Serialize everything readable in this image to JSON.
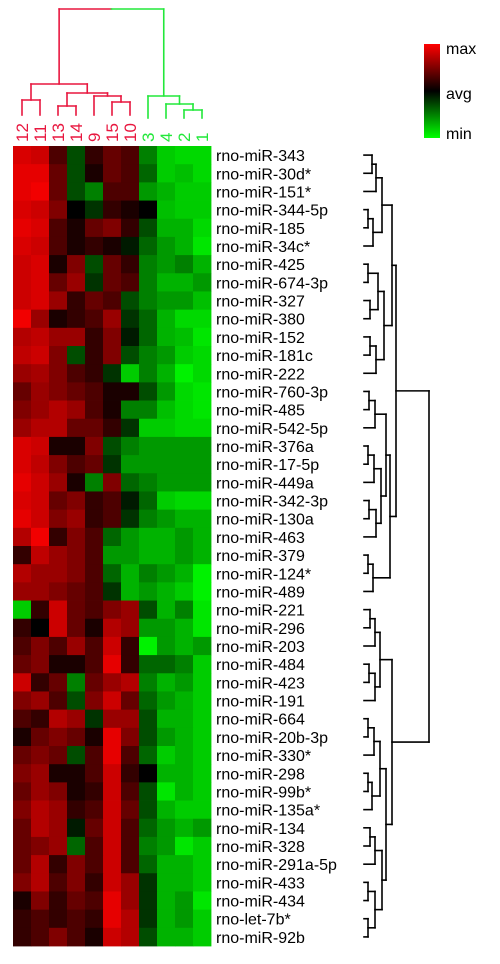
{
  "chart_data": {
    "type": "heatmap",
    "title": "",
    "xlabel": "",
    "ylabel": "",
    "columns": [
      "12",
      "11",
      "13",
      "14",
      "9",
      "15",
      "10",
      "3",
      "4",
      "2",
      "1"
    ],
    "column_groups": [
      {
        "members": [
          "12",
          "11",
          "13",
          "14",
          "9",
          "15",
          "10"
        ],
        "color": "#e8173f"
      },
      {
        "members": [
          "3",
          "4",
          "2",
          "1"
        ],
        "color": "#22e83a"
      }
    ],
    "rows": [
      "rno-miR-343",
      "rno-miR-30d*",
      "rno-miR-151*",
      "rno-miR-344-5p",
      "rno-miR-185",
      "rno-miR-34c*",
      "rno-miR-425",
      "rno-miR-674-3p",
      "rno-miR-327",
      "rno-miR-380",
      "rno-miR-152",
      "rno-miR-181c",
      "rno-miR-222",
      "rno-miR-760-3p",
      "rno-miR-485",
      "rno-miR-542-5p",
      "rno-miR-376a",
      "rno-miR-17-5p",
      "rno-miR-449a",
      "rno-miR-342-3p",
      "rno-miR-130a",
      "rno-miR-463",
      "rno-miR-379",
      "rno-miR-124*",
      "rno-miR-489",
      "rno-miR-221",
      "rno-miR-296",
      "rno-miR-203",
      "rno-miR-484",
      "rno-miR-423",
      "rno-miR-191",
      "rno-miR-664",
      "rno-miR-20b-3p",
      "rno-miR-330*",
      "rno-miR-298",
      "rno-miR-99b*",
      "rno-miR-135a*",
      "rno-miR-134",
      "rno-miR-328",
      "rno-miR-291a-5p",
      "rno-miR-433",
      "rno-miR-434",
      "rno-let-7b*",
      "rno-miR-92b"
    ],
    "value_range": [
      -1,
      1
    ],
    "values": [
      [
        0.85,
        0.8,
        0.3,
        -0.3,
        0.2,
        0.4,
        0.3,
        -0.5,
        -0.8,
        -0.85,
        -0.85
      ],
      [
        0.9,
        0.9,
        0.4,
        -0.3,
        0.1,
        0.4,
        0.3,
        -0.4,
        -0.8,
        -0.75,
        -0.85
      ],
      [
        0.9,
        0.95,
        0.4,
        -0.3,
        -0.5,
        0.3,
        0.3,
        -0.6,
        -0.7,
        -0.8,
        -0.8
      ],
      [
        0.85,
        0.8,
        0.5,
        0.0,
        -0.2,
        0.2,
        0.1,
        0.0,
        -0.75,
        -0.8,
        -0.8
      ],
      [
        0.9,
        0.85,
        0.3,
        0.1,
        0.4,
        0.5,
        0.2,
        -0.3,
        -0.7,
        -0.7,
        -0.85
      ],
      [
        0.85,
        0.8,
        0.3,
        0.1,
        0.2,
        0.1,
        -0.1,
        -0.4,
        -0.6,
        -0.7,
        -0.9
      ],
      [
        0.8,
        0.85,
        0.1,
        0.5,
        -0.3,
        0.4,
        0.2,
        -0.5,
        -0.6,
        -0.5,
        -0.7
      ],
      [
        0.8,
        0.85,
        0.4,
        0.6,
        -0.2,
        0.4,
        0.3,
        -0.5,
        -0.7,
        -0.7,
        -0.6
      ],
      [
        0.8,
        0.85,
        0.6,
        0.2,
        0.4,
        0.3,
        -0.3,
        -0.5,
        -0.6,
        -0.6,
        -0.75
      ],
      [
        0.95,
        0.6,
        0.1,
        0.2,
        0.3,
        0.6,
        -0.2,
        -0.4,
        -0.7,
        -0.85,
        -0.85
      ],
      [
        0.7,
        0.75,
        0.6,
        0.6,
        0.2,
        0.5,
        -0.1,
        -0.4,
        -0.7,
        -0.75,
        -0.9
      ],
      [
        0.75,
        0.8,
        0.5,
        -0.3,
        0.2,
        0.5,
        -0.3,
        -0.5,
        -0.6,
        -0.8,
        -0.85
      ],
      [
        0.6,
        0.65,
        0.5,
        0.3,
        0.2,
        -0.2,
        -0.8,
        -0.5,
        -0.7,
        -0.95,
        -0.85
      ],
      [
        0.4,
        0.6,
        0.5,
        0.4,
        0.3,
        0.1,
        0.1,
        -0.3,
        -0.6,
        -0.85,
        -0.9
      ],
      [
        0.5,
        0.6,
        0.7,
        0.6,
        0.3,
        0.1,
        -0.5,
        -0.5,
        -0.75,
        -0.85,
        -0.9
      ],
      [
        0.6,
        0.7,
        0.7,
        0.4,
        0.4,
        0.2,
        -0.2,
        -0.8,
        -0.8,
        -0.85,
        -0.85
      ],
      [
        0.85,
        0.8,
        0.1,
        0.1,
        0.5,
        -0.3,
        -0.5,
        -0.6,
        -0.6,
        -0.6,
        -0.6
      ],
      [
        0.85,
        0.75,
        0.5,
        0.3,
        0.4,
        -0.2,
        -0.6,
        -0.6,
        -0.6,
        -0.6,
        -0.6
      ],
      [
        0.9,
        0.8,
        0.6,
        0.1,
        -0.5,
        0.5,
        -0.4,
        -0.5,
        -0.6,
        -0.6,
        -0.6
      ],
      [
        0.85,
        0.8,
        0.4,
        0.5,
        0.2,
        0.3,
        -0.1,
        -0.4,
        -0.8,
        -0.85,
        -0.85
      ],
      [
        0.9,
        0.8,
        0.5,
        0.6,
        0.2,
        0.3,
        -0.2,
        -0.5,
        -0.6,
        -0.7,
        -0.7
      ],
      [
        0.7,
        0.95,
        0.2,
        0.5,
        0.3,
        -0.4,
        -0.6,
        -0.7,
        -0.7,
        -0.6,
        -0.7
      ],
      [
        0.2,
        0.75,
        0.6,
        0.5,
        0.3,
        -0.6,
        -0.6,
        -0.7,
        -0.7,
        -0.6,
        -0.7
      ],
      [
        0.7,
        0.6,
        0.6,
        0.5,
        0.3,
        -0.4,
        -0.7,
        -0.5,
        -0.6,
        -0.7,
        -0.95
      ],
      [
        0.6,
        0.6,
        0.5,
        0.4,
        0.3,
        -0.2,
        -0.7,
        -0.6,
        -0.7,
        -0.8,
        -0.95
      ],
      [
        -0.8,
        0.2,
        0.8,
        0.4,
        0.3,
        0.5,
        0.6,
        -0.3,
        -0.7,
        -0.5,
        -0.9
      ],
      [
        0.2,
        0.0,
        0.8,
        0.4,
        0.1,
        0.7,
        0.6,
        -0.6,
        -0.6,
        -0.7,
        -0.9
      ],
      [
        0.3,
        0.5,
        0.3,
        0.6,
        0.3,
        0.8,
        0.2,
        -0.95,
        -0.6,
        -0.7,
        -0.6
      ],
      [
        0.4,
        0.5,
        0.1,
        0.1,
        0.3,
        0.9,
        0.2,
        -0.4,
        -0.4,
        -0.5,
        -0.8
      ],
      [
        0.8,
        0.2,
        0.4,
        -0.5,
        0.4,
        0.6,
        0.7,
        -0.5,
        -0.7,
        -0.6,
        -0.8
      ],
      [
        0.5,
        0.6,
        0.3,
        -0.3,
        0.5,
        0.8,
        0.4,
        -0.4,
        -0.6,
        -0.7,
        -0.8
      ],
      [
        0.3,
        0.2,
        0.7,
        0.6,
        -0.2,
        0.6,
        0.6,
        -0.3,
        -0.7,
        -0.7,
        -0.8
      ],
      [
        0.1,
        0.4,
        0.5,
        0.4,
        0.1,
        0.9,
        0.5,
        -0.3,
        -0.6,
        -0.7,
        -0.8
      ],
      [
        0.4,
        0.5,
        0.4,
        -0.3,
        0.3,
        0.9,
        0.3,
        -0.4,
        -0.8,
        -0.7,
        -0.8
      ],
      [
        0.5,
        0.6,
        0.1,
        0.1,
        0.3,
        0.8,
        0.2,
        0.0,
        -0.7,
        -0.7,
        -0.8
      ],
      [
        0.4,
        0.6,
        0.5,
        0.1,
        0.2,
        0.8,
        0.3,
        -0.3,
        -0.9,
        -0.7,
        -0.8
      ],
      [
        0.5,
        0.7,
        0.6,
        0.2,
        0.3,
        0.8,
        0.4,
        -0.3,
        -0.7,
        -0.8,
        -0.8
      ],
      [
        0.4,
        0.7,
        0.6,
        -0.1,
        0.4,
        0.8,
        0.3,
        -0.4,
        -0.6,
        -0.7,
        -0.6
      ],
      [
        0.4,
        0.5,
        0.6,
        -0.4,
        0.3,
        0.8,
        0.3,
        -0.5,
        -0.6,
        -0.9,
        -0.8
      ],
      [
        0.4,
        0.7,
        0.2,
        0.5,
        0.3,
        0.8,
        0.3,
        -0.4,
        -0.7,
        -0.7,
        -0.8
      ],
      [
        0.5,
        0.7,
        0.3,
        0.5,
        0.2,
        0.8,
        0.6,
        -0.2,
        -0.7,
        -0.7,
        -0.8
      ],
      [
        0.1,
        0.5,
        0.2,
        0.4,
        0.3,
        0.9,
        0.6,
        -0.2,
        -0.7,
        -0.6,
        -0.9
      ],
      [
        0.2,
        0.3,
        0.2,
        0.3,
        0.2,
        0.9,
        0.7,
        -0.2,
        -0.7,
        -0.6,
        -0.8
      ],
      [
        0.2,
        0.3,
        0.5,
        0.3,
        0.1,
        0.8,
        0.7,
        -0.3,
        -0.7,
        -0.7,
        -0.8
      ]
    ],
    "legend": {
      "placement": "top-right",
      "labels": [
        "max",
        "avg",
        "min"
      ],
      "colors": [
        "#ff0000",
        "#000000",
        "#00ff00"
      ]
    },
    "row_dendrogram_color": "#000000"
  }
}
